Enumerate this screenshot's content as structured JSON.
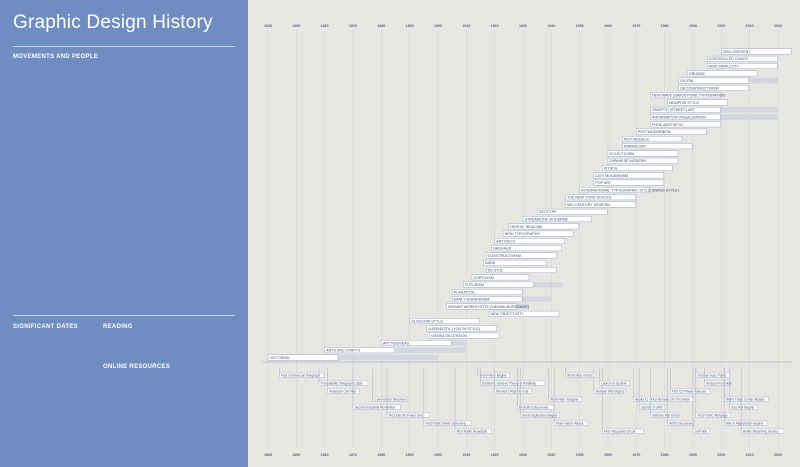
{
  "page": {
    "title": "Graphic Design History"
  },
  "sidebar": {
    "movements_heading": "MOVEMENTS AND PEOPLE",
    "dates_heading": "SIGNIFICANT DATES",
    "reading_heading": "READING",
    "resources_heading": "ONLINE RESOURCES"
  },
  "chart_data": {
    "type": "timeline",
    "x_ticks": [
      1840,
      1850,
      1860,
      1870,
      1880,
      1890,
      1900,
      1910,
      1920,
      1930,
      1940,
      1950,
      1960,
      1970,
      1980,
      1990,
      2000,
      2010,
      2020
    ],
    "xlim": [
      1840,
      2020
    ],
    "movements": [
      {
        "label": "VICTORIAN",
        "start": 1840,
        "end": 1900
      },
      {
        "label": "ARTS AND CRAFTS",
        "start": 1860,
        "end": 1910
      },
      {
        "label": "ART NOUVEAU",
        "start": 1880,
        "end": 1910
      },
      {
        "label": "VIENNA SECESSION",
        "start": 1897,
        "end": 1918
      },
      {
        "label": "JUGENDSTIL (YOUTH STYLE)",
        "start": 1896,
        "end": 1914
      },
      {
        "label": "GLASGOW STYLE",
        "start": 1890,
        "end": 1914
      },
      {
        "label": "NEW OBJECTIVITY",
        "start": 1918,
        "end": 1933
      },
      {
        "label": "WIENER WERKSTÄTTE (VIENNA WORKSHOP)",
        "start": 1903,
        "end": 1932
      },
      {
        "label": "EARLY MODERNISM",
        "start": 1905,
        "end": 1940
      },
      {
        "label": "PLAKATSTIL",
        "start": 1905,
        "end": 1920
      },
      {
        "label": "FUTURISM",
        "start": 1909,
        "end": 1944
      },
      {
        "label": "VORTICISM",
        "start": 1912,
        "end": 1918
      },
      {
        "label": "DE STIJL",
        "start": 1917,
        "end": 1931
      },
      {
        "label": "DADA",
        "start": 1916,
        "end": 1924
      },
      {
        "label": "CONSTRUCTIVISM",
        "start": 1917,
        "end": 1935
      },
      {
        "label": "BAUHAUS",
        "start": 1919,
        "end": 1933
      },
      {
        "label": "ART DECO",
        "start": 1920,
        "end": 1939
      },
      {
        "label": "NEW TYPOGRAPHY",
        "start": 1923,
        "end": 1940
      },
      {
        "label": "HEROIC REALISM",
        "start": 1925,
        "end": 1945
      },
      {
        "label": "STREAMLINE MODERNE",
        "start": 1930,
        "end": 1940
      },
      {
        "label": "GEOTYPE",
        "start": 1935,
        "end": 1950
      },
      {
        "label": "MID-CENTURY MODERN",
        "start": 1945,
        "end": 1965
      },
      {
        "label": "THE NEW YORK SCHOOL",
        "start": 1945,
        "end": 1960
      },
      {
        "label": "INTERNATIONAL TYPOGRAPHIC STYLE (SWISS STYLE)",
        "start": 1950,
        "end": 1975
      },
      {
        "label": "POP ART",
        "start": 1955,
        "end": 1970
      },
      {
        "label": "LATE MODERNISM",
        "start": 1955,
        "end": 1975
      },
      {
        "label": "KITSCH",
        "start": 1958,
        "end": 1972
      },
      {
        "label": "JAPANESE MODERN",
        "start": 1960,
        "end": 1975
      },
      {
        "label": "ECLECTICISM",
        "start": 1960,
        "end": 1975
      },
      {
        "label": "MINIMALISM",
        "start": 1965,
        "end": 1990
      },
      {
        "label": "PSYCHEDELIC",
        "start": 1965,
        "end": 1972
      },
      {
        "label": "POSTMODERNISM",
        "start": 1970,
        "end": 1995
      },
      {
        "label": "PUNK AESTHETIC",
        "start": 1975,
        "end": 1990
      },
      {
        "label": "INFORMATION VISUALIZATION",
        "start": 1975,
        "end": 2020
      },
      {
        "label": "GRAFFITI (STREET) ART",
        "start": 1975,
        "end": 2020
      },
      {
        "label": "MEMPHIS STYLE",
        "start": 1981,
        "end": 1988
      },
      {
        "label": "NEW WAVE (SWISS PUNK TYPOGRAPHY)",
        "start": 1975,
        "end": 1995
      },
      {
        "label": "DECONSTRUCTIVISM",
        "start": 1985,
        "end": 2000
      },
      {
        "label": "DIGITAL",
        "start": 1985,
        "end": 2020
      },
      {
        "label": "GRUNGE",
        "start": 1988,
        "end": 2000
      },
      {
        "label": "NEW SIMPLICITY",
        "start": 1995,
        "end": 2020
      },
      {
        "label": "CONTROLLED CHAOS",
        "start": 1995,
        "end": 2010
      },
      {
        "label": "2000–PRESENT",
        "start": 2000,
        "end": 2020
      }
    ],
    "events": [
      {
        "label": "First Commercial Telegraph",
        "year": 1844
      },
      {
        "label": "Transatlantic Telegraph Cable",
        "year": 1858
      },
      {
        "label": "American Civil War",
        "year": 1861
      },
      {
        "label": "Commercial Telephone",
        "year": 1877
      },
      {
        "label": "Second Industrial Revolution",
        "year": 1870
      },
      {
        "label": "First Electric Power Grid",
        "year": 1882
      },
      {
        "label": "First Public Movie Screening",
        "year": 1895
      },
      {
        "label": "First Radio Broadcast",
        "year": 1906
      },
      {
        "label": "World War I Begins",
        "year": 1914
      },
      {
        "label": "Einstein's General Theory of Relativity",
        "year": 1915
      },
      {
        "label": "Women's Right to Vote",
        "year": 1920
      },
      {
        "label": "World War II Begins",
        "year": 1939
      },
      {
        "label": "Penicillin Discovered",
        "year": 1928
      },
      {
        "label": "Great Depression Begins",
        "year": 1929
      },
      {
        "label": "Pearl Harbor Attack",
        "year": 1941
      },
      {
        "label": "First Integrated Circuit",
        "year": 1958
      },
      {
        "label": "World War II Ends",
        "year": 1945
      },
      {
        "label": "Launch of Sputnik",
        "year": 1957
      },
      {
        "label": "Vietnam War Begins",
        "year": 1955
      },
      {
        "label": "Apollo 11 / First Humans On The Moon",
        "year": 1969
      },
      {
        "label": "Launch of UNIX",
        "year": 1971
      },
      {
        "label": "Vietnam War Ends",
        "year": 1975
      },
      {
        "label": "AIDS Discovered",
        "year": 1981
      },
      {
        "label": "Gulf War",
        "year": 1990
      },
      {
        "label": "Internet Goes Public",
        "year": 1991
      },
      {
        "label": "Amazon Founded",
        "year": 1994
      },
      {
        "label": "First CD Player Release",
        "year": 1982
      },
      {
        "label": "World Trade Center Attacks",
        "year": 2001
      },
      {
        "label": "Iraq War Begins",
        "year": 2003
      },
      {
        "label": "First Public Webpage",
        "year": 1991
      },
      {
        "label": "War in Afghanistan Begins",
        "year": 2001
      },
      {
        "label": "Netflix Streaming Service",
        "year": 2007
      }
    ]
  }
}
